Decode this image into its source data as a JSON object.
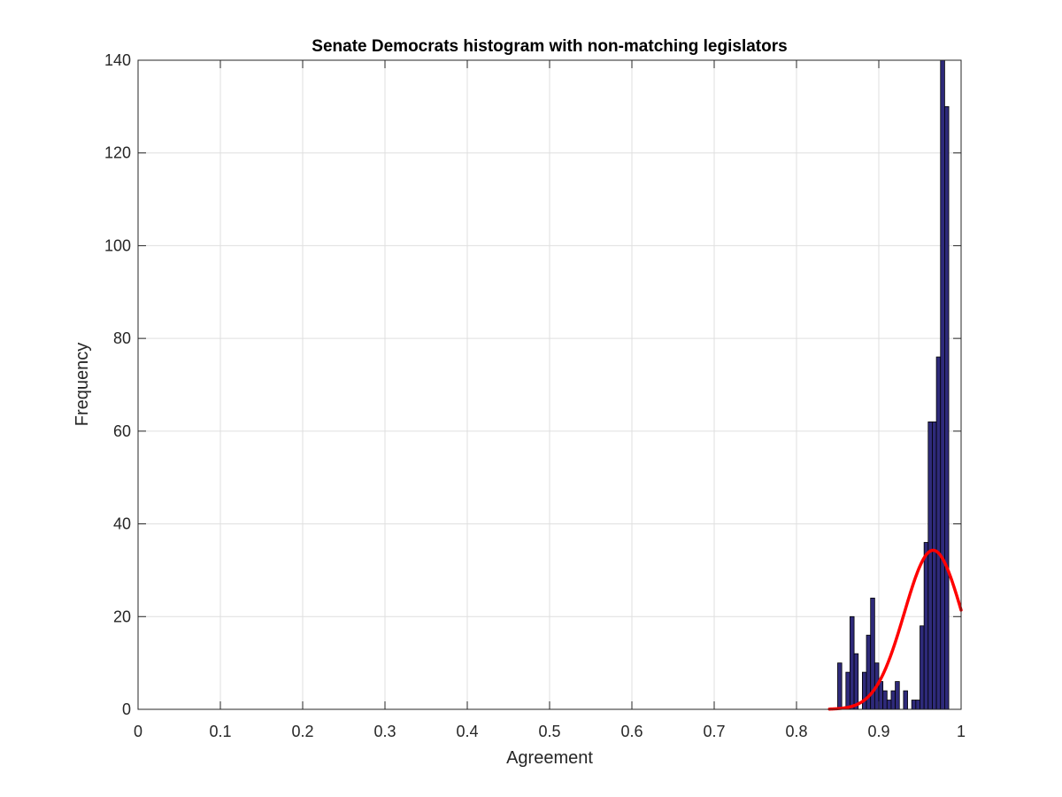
{
  "chart_data": {
    "type": "bar",
    "title": "Senate Democrats histogram with non-matching legislators",
    "xlabel": "Agreement",
    "ylabel": "Frequency",
    "xlim": [
      0,
      1
    ],
    "ylim": [
      0,
      140
    ],
    "grid": true,
    "x_ticks": [
      "0",
      "0.1",
      "0.2",
      "0.3",
      "0.4",
      "0.5",
      "0.6",
      "0.7",
      "0.8",
      "0.9",
      "1"
    ],
    "y_ticks": [
      "0",
      "20",
      "40",
      "60",
      "80",
      "100",
      "120",
      "140"
    ],
    "bin_width": 0.005,
    "bins": [
      {
        "x0": 0.85,
        "count": 10
      },
      {
        "x0": 0.855,
        "count": 0
      },
      {
        "x0": 0.86,
        "count": 8
      },
      {
        "x0": 0.865,
        "count": 20
      },
      {
        "x0": 0.87,
        "count": 12
      },
      {
        "x0": 0.875,
        "count": 0
      },
      {
        "x0": 0.88,
        "count": 8
      },
      {
        "x0": 0.885,
        "count": 16
      },
      {
        "x0": 0.89,
        "count": 24
      },
      {
        "x0": 0.895,
        "count": 10
      },
      {
        "x0": 0.9,
        "count": 6
      },
      {
        "x0": 0.905,
        "count": 4
      },
      {
        "x0": 0.91,
        "count": 2
      },
      {
        "x0": 0.915,
        "count": 4
      },
      {
        "x0": 0.92,
        "count": 6
      },
      {
        "x0": 0.925,
        "count": 0
      },
      {
        "x0": 0.93,
        "count": 4
      },
      {
        "x0": 0.935,
        "count": 0
      },
      {
        "x0": 0.94,
        "count": 2
      },
      {
        "x0": 0.945,
        "count": 2
      },
      {
        "x0": 0.95,
        "count": 18
      },
      {
        "x0": 0.955,
        "count": 36
      },
      {
        "x0": 0.96,
        "count": 62
      },
      {
        "x0": 0.965,
        "count": 62
      },
      {
        "x0": 0.97,
        "count": 76
      },
      {
        "x0": 0.975,
        "count": 140
      },
      {
        "x0": 0.98,
        "count": 130
      }
    ],
    "fit_curve": {
      "type": "normal",
      "mean": 0.966,
      "sd": 0.035,
      "peak": 34.3,
      "x_range": [
        0.84,
        1.0
      ]
    },
    "colors": {
      "bar_fill": "#2e2a7a",
      "bar_edge": "#000000",
      "fit_line": "#ff0000",
      "grid": "#dfdfdf",
      "axis": "#262626"
    }
  }
}
